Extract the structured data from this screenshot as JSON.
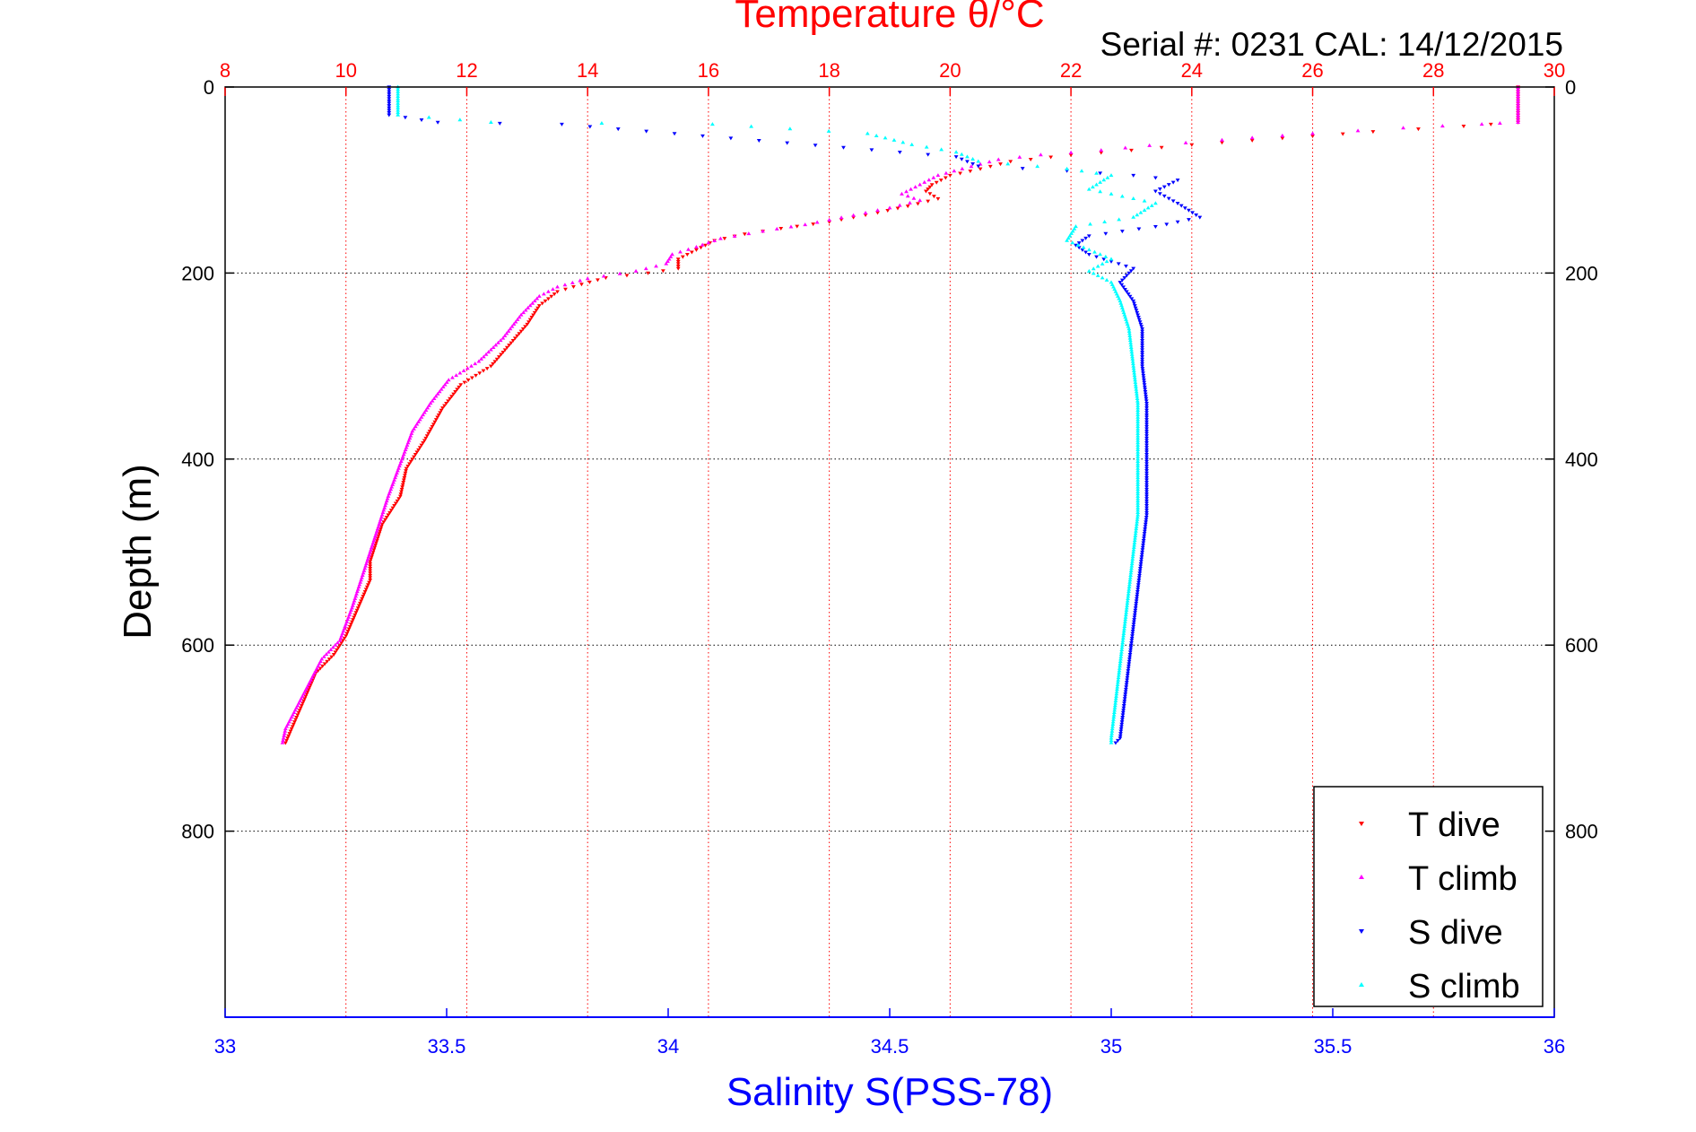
{
  "chart_data": {
    "type": "scatter",
    "title": "Temperature θ/°C",
    "subtitle": "Serial #: 0231  CAL: 14/12/2015",
    "xlabel": "Salinity S(PSS-78)",
    "ylabel": "Depth (m)",
    "x_top_ticks": [
      "8",
      "10",
      "12",
      "14",
      "16",
      "18",
      "20",
      "22",
      "24",
      "26",
      "28",
      "30"
    ],
    "x_bottom_ticks": [
      "33",
      "33.5",
      "34",
      "34.5",
      "35",
      "35.5",
      "36"
    ],
    "y_ticks": [
      "0",
      "200",
      "400",
      "600",
      "800"
    ],
    "x_top_range": [
      8,
      30
    ],
    "x_bottom_range": [
      33,
      36
    ],
    "y_range": [
      0,
      1000
    ],
    "y_reversed": true,
    "grid": true,
    "legend_position": "bottom-right",
    "colors": {
      "t_dive": "#ff0000",
      "t_climb": "#ff00ff",
      "s_dive": "#0000ff",
      "s_climb": "#00ffff",
      "temp_axis": "#ff0000",
      "sal_axis": "#0000ff",
      "grid_temp": "#ff0000",
      "grid_depth": "#000000"
    },
    "series": [
      {
        "name": "T dive",
        "axis": "temperature",
        "points": [
          [
            29.4,
            0
          ],
          [
            29.4,
            20
          ],
          [
            29.4,
            38
          ],
          [
            28.5,
            42
          ],
          [
            27.0,
            48
          ],
          [
            25.5,
            55
          ],
          [
            24.0,
            62
          ],
          [
            23.0,
            68
          ],
          [
            22.0,
            73
          ],
          [
            21.0,
            80
          ],
          [
            20.5,
            88
          ],
          [
            20.0,
            95
          ],
          [
            19.7,
            105
          ],
          [
            19.6,
            112
          ],
          [
            19.8,
            120
          ],
          [
            19.3,
            128
          ],
          [
            18.8,
            135
          ],
          [
            18.0,
            145
          ],
          [
            17.2,
            152
          ],
          [
            16.6,
            158
          ],
          [
            16.1,
            165
          ],
          [
            15.8,
            175
          ],
          [
            15.5,
            185
          ],
          [
            15.5,
            195
          ],
          [
            15.0,
            200
          ],
          [
            14.3,
            205
          ],
          [
            13.9,
            212
          ],
          [
            13.5,
            220
          ],
          [
            13.2,
            235
          ],
          [
            13.0,
            255
          ],
          [
            12.8,
            270
          ],
          [
            12.4,
            300
          ],
          [
            11.9,
            320
          ],
          [
            11.6,
            345
          ],
          [
            11.3,
            380
          ],
          [
            11.0,
            410
          ],
          [
            10.9,
            440
          ],
          [
            10.6,
            470
          ],
          [
            10.4,
            510
          ],
          [
            10.4,
            530
          ],
          [
            10.2,
            560
          ],
          [
            10.0,
            590
          ],
          [
            9.8,
            610
          ],
          [
            9.5,
            630
          ],
          [
            9.3,
            660
          ],
          [
            9.1,
            690
          ],
          [
            9.0,
            705
          ]
        ]
      },
      {
        "name": "T climb",
        "axis": "temperature",
        "points": [
          [
            29.4,
            0
          ],
          [
            29.4,
            20
          ],
          [
            29.4,
            38
          ],
          [
            28.8,
            40
          ],
          [
            27.5,
            44
          ],
          [
            26.0,
            50
          ],
          [
            24.5,
            57
          ],
          [
            23.3,
            63
          ],
          [
            22.5,
            68
          ],
          [
            21.5,
            73
          ],
          [
            20.8,
            78
          ],
          [
            20.2,
            88
          ],
          [
            19.8,
            95
          ],
          [
            19.5,
            105
          ],
          [
            19.2,
            115
          ],
          [
            19.5,
            122
          ],
          [
            19.0,
            130
          ],
          [
            18.4,
            138
          ],
          [
            17.6,
            148
          ],
          [
            16.9,
            155
          ],
          [
            16.2,
            163
          ],
          [
            15.8,
            172
          ],
          [
            15.4,
            180
          ],
          [
            15.3,
            190
          ],
          [
            14.8,
            198
          ],
          [
            14.0,
            206
          ],
          [
            13.5,
            215
          ],
          [
            13.2,
            225
          ],
          [
            12.9,
            245
          ],
          [
            12.6,
            270
          ],
          [
            12.2,
            295
          ],
          [
            11.7,
            315
          ],
          [
            11.4,
            340
          ],
          [
            11.1,
            370
          ],
          [
            10.9,
            405
          ],
          [
            10.7,
            440
          ],
          [
            10.5,
            480
          ],
          [
            10.3,
            520
          ],
          [
            10.1,
            560
          ],
          [
            9.9,
            595
          ],
          [
            9.6,
            615
          ],
          [
            9.4,
            640
          ],
          [
            9.2,
            665
          ],
          [
            9.0,
            690
          ],
          [
            8.95,
            705
          ]
        ]
      },
      {
        "name": "S dive",
        "axis": "salinity",
        "points": [
          [
            33.37,
            0
          ],
          [
            33.37,
            15
          ],
          [
            33.37,
            30
          ],
          [
            33.48,
            38
          ],
          [
            33.76,
            40
          ],
          [
            34.65,
            75
          ],
          [
            34.7,
            85
          ],
          [
            34.9,
            90
          ],
          [
            35.05,
            95
          ],
          [
            35.15,
            100
          ],
          [
            35.1,
            112
          ],
          [
            35.15,
            125
          ],
          [
            35.2,
            140
          ],
          [
            35.1,
            150
          ],
          [
            34.95,
            160
          ],
          [
            34.92,
            170
          ],
          [
            34.95,
            180
          ],
          [
            35.05,
            195
          ],
          [
            35.02,
            210
          ],
          [
            35.05,
            230
          ],
          [
            35.07,
            260
          ],
          [
            35.07,
            300
          ],
          [
            35.08,
            340
          ],
          [
            35.08,
            380
          ],
          [
            35.08,
            420
          ],
          [
            35.08,
            460
          ],
          [
            35.07,
            500
          ],
          [
            35.06,
            540
          ],
          [
            35.05,
            580
          ],
          [
            35.04,
            620
          ],
          [
            35.03,
            660
          ],
          [
            35.02,
            700
          ],
          [
            35.01,
            705
          ]
        ]
      },
      {
        "name": "S climb",
        "axis": "salinity",
        "points": [
          [
            33.39,
            0
          ],
          [
            33.39,
            15
          ],
          [
            33.39,
            30
          ],
          [
            33.6,
            38
          ],
          [
            34.1,
            40
          ],
          [
            34.45,
            50
          ],
          [
            34.55,
            62
          ],
          [
            34.65,
            70
          ],
          [
            34.7,
            80
          ],
          [
            34.9,
            88
          ],
          [
            35.0,
            95
          ],
          [
            34.95,
            110
          ],
          [
            35.1,
            125
          ],
          [
            35.05,
            140
          ],
          [
            34.92,
            150
          ],
          [
            34.9,
            165
          ],
          [
            34.95,
            175
          ],
          [
            35.0,
            185
          ],
          [
            34.95,
            198
          ],
          [
            35.0,
            210
          ],
          [
            35.02,
            230
          ],
          [
            35.04,
            260
          ],
          [
            35.05,
            300
          ],
          [
            35.06,
            340
          ],
          [
            35.06,
            380
          ],
          [
            35.06,
            420
          ],
          [
            35.06,
            460
          ],
          [
            35.05,
            500
          ],
          [
            35.04,
            540
          ],
          [
            35.03,
            580
          ],
          [
            35.02,
            620
          ],
          [
            35.01,
            660
          ],
          [
            35.0,
            700
          ],
          [
            35.0,
            705
          ]
        ]
      }
    ]
  }
}
